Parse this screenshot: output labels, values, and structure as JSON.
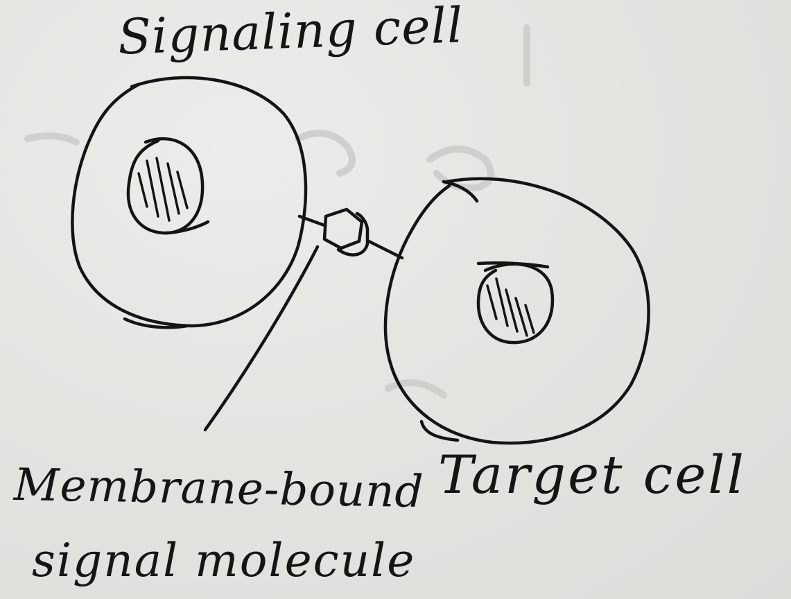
{
  "labels": {
    "signaling_cell": "Signaling cell",
    "target_cell": "Target cell",
    "membrane_bound": "Membrane-bound",
    "signal_molecule": "signal molecule"
  }
}
